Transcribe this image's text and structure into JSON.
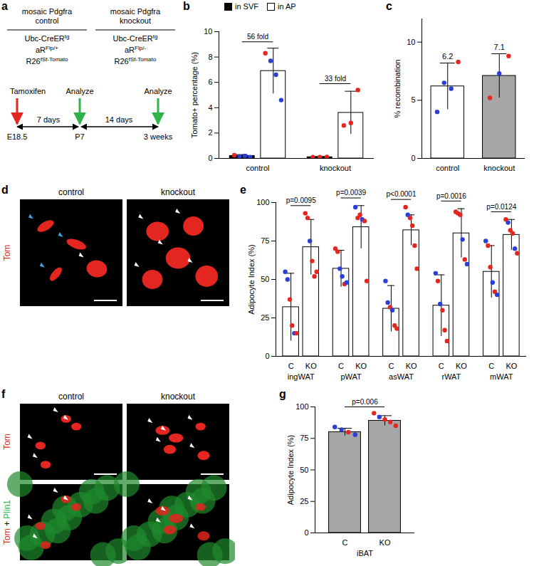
{
  "diagram": {
    "panel": "a",
    "groups": [
      {
        "title": [
          "mosaic Pdgfra",
          "control"
        ],
        "genotype": [
          {
            "base": "Ubc-CreER",
            "sup": "tg"
          },
          {
            "base": "aR",
            "sup": "Flp/+"
          },
          {
            "base": "R26",
            "sup": "fSf-Tomato"
          }
        ]
      },
      {
        "title": [
          "mosaic Pdgfra",
          "knockout"
        ],
        "genotype": [
          {
            "base": "Ubc-CreER",
            "sup": "tg"
          },
          {
            "base": "aR",
            "sup": "Flp/-"
          },
          {
            "base": "R26",
            "sup": "fSf-Tomato"
          }
        ]
      }
    ],
    "timeline": {
      "points": [
        "E18.5",
        "P7",
        "3 weeks"
      ],
      "intervals": [
        "7 days",
        "14 days"
      ],
      "start_label": "Tamoxifen",
      "analyze_label": "Analyze"
    }
  },
  "images": [
    {
      "panel": "d",
      "columns": [
        "control",
        "knockout"
      ],
      "rows": [
        "Tom"
      ]
    },
    {
      "panel": "f",
      "columns": [
        "control",
        "knockout"
      ],
      "rows": [
        "Tom",
        "Tom + Plin1"
      ]
    }
  ],
  "chart_data": [
    {
      "panel": "b",
      "type": "bar",
      "categories": [
        "control",
        "knockout"
      ],
      "y_label": "Tomato+ percentage (%)",
      "ylim": [
        0,
        10
      ],
      "yticks": [
        0,
        2,
        4,
        6,
        8,
        10
      ],
      "legend": "upper left",
      "series": [
        {
          "name": "in SVF",
          "color": "#000000",
          "values": [
            0.2,
            0.1
          ],
          "errors": [
            0.1,
            0.05
          ],
          "points": [
            [
              0.25,
              0.15,
              0.2,
              0.1
            ],
            [
              0.1,
              0.1,
              0.12
            ]
          ],
          "point_colors": [
            [
              "#e3261f",
              "#2b3fd6",
              "#2b3fd6",
              "#2b3fd6"
            ],
            [
              "#e3261f",
              "#e3261f",
              "#e3261f"
            ]
          ]
        },
        {
          "name": "in AP",
          "color": "#ffffff",
          "values": [
            6.9,
            3.6
          ],
          "errors": [
            1.8,
            1.7
          ],
          "points": [
            [
              8.3,
              7.7,
              6.6,
              4.6
            ],
            [
              2.6,
              2.8,
              5.4
            ]
          ],
          "point_colors": [
            [
              "#e3261f",
              "#2b3fd6",
              "#2b3fd6",
              "#2b3fd6"
            ],
            [
              "#e3261f",
              "#e3261f",
              "#e3261f"
            ]
          ]
        }
      ],
      "annotations": [
        {
          "category": "control",
          "text": "56 fold"
        },
        {
          "category": "knockout",
          "text": "33 fold"
        }
      ]
    },
    {
      "panel": "c",
      "type": "bar",
      "categories": [
        "control",
        "knockout"
      ],
      "y_label": "% recombination",
      "ylim": [
        0,
        12
      ],
      "yticks": [
        0,
        5,
        10
      ],
      "data_labels": true,
      "values": [
        6.2,
        7.1
      ],
      "colors": [
        "#ffffff",
        "#a6a6a6"
      ],
      "errors": [
        2.0,
        1.9
      ],
      "points": [
        [
          4.0,
          6.5,
          6.0,
          8.3
        ],
        [
          5.2,
          7.3,
          8.8
        ]
      ],
      "point_colors": [
        [
          "#2b3fd6",
          "#2b3fd6",
          "#2b3fd6",
          "#e3261f"
        ],
        [
          "#e3261f",
          "#2b3fd6",
          "#e3261f"
        ]
      ]
    },
    {
      "panel": "e",
      "type": "bar",
      "categories": [
        "ingWAT",
        "pWAT",
        "asWAT",
        "rWAT",
        "mWAT"
      ],
      "y_label": "Adipocyte Index (%)",
      "ylim": [
        0,
        100
      ],
      "yticks": [
        0,
        25,
        50,
        75,
        100
      ],
      "series": [
        {
          "name": "C",
          "color": "#ffffff",
          "values": [
            32,
            57,
            31,
            33,
            55
          ],
          "errors": [
            22,
            12,
            15,
            20,
            17
          ],
          "points": [
            [
              55,
              50,
              37,
              20,
              15,
              15
            ],
            [
              70,
              68,
              57,
              52,
              47,
              48
            ],
            [
              49,
              35,
              32,
              30,
              20,
              18
            ],
            [
              54,
              49,
              34,
              30,
              17,
              10
            ],
            [
              75,
              72,
              58,
              48,
              42,
              40
            ]
          ],
          "point_colors": [
            [
              "#2b3fd6",
              "#2b3fd6",
              "#e3261f",
              "#e3261f",
              "#2b3fd6",
              "#e3261f"
            ],
            [
              "#e3261f",
              "#e3261f",
              "#2b3fd6",
              "#2b3fd6",
              "#e3261f",
              "#2b3fd6"
            ],
            [
              "#2b3fd6",
              "#2b3fd6",
              "#e3261f",
              "#2b3fd6",
              "#e3261f",
              "#e3261f"
            ],
            [
              "#2b3fd6",
              "#e3261f",
              "#2b3fd6",
              "#e3261f",
              "#e3261f",
              "#e3261f"
            ],
            [
              "#2b3fd6",
              "#e3261f",
              "#e3261f",
              "#2b3fd6",
              "#e3261f",
              "#2b3fd6"
            ]
          ]
        },
        {
          "name": "KO",
          "color": "#ffffff",
          "values": [
            71,
            84,
            82,
            80,
            79
          ],
          "errors": [
            18,
            14,
            10,
            16,
            10
          ],
          "points": [
            [
              93,
              90,
              75,
              62,
              52,
              55
            ],
            [
              97,
              90,
              92,
              89,
              88,
              49
            ],
            [
              97,
              92,
              90,
              85,
              72,
              57
            ],
            [
              94,
              93,
              92,
              76,
              63,
              60
            ],
            [
              89,
              87,
              82,
              80,
              70,
              67
            ]
          ],
          "point_colors": [
            [
              "#e3261f",
              "#e3261f",
              "#2b3fd6",
              "#e3261f",
              "#e3261f",
              "#e3261f"
            ],
            [
              "#2b3fd6",
              "#e3261f",
              "#e3261f",
              "#2b3fd6",
              "#e3261f",
              "#e3261f"
            ],
            [
              "#e3261f",
              "#2b3fd6",
              "#e3261f",
              "#e3261f",
              "#e3261f",
              "#e3261f"
            ],
            [
              "#e3261f",
              "#e3261f",
              "#e3261f",
              "#2b3fd6",
              "#e3261f",
              "#2b3fd6"
            ],
            [
              "#e3261f",
              "#2b3fd6",
              "#e3261f",
              "#e3261f",
              "#2b3fd6",
              "#e3261f"
            ]
          ]
        }
      ],
      "annotations": [
        {
          "category": "ingWAT",
          "text": "p=0.0095"
        },
        {
          "category": "pWAT",
          "text": "p=0.0039"
        },
        {
          "category": "asWAT",
          "text": "p<0.0001"
        },
        {
          "category": "rWAT",
          "text": "p=0.0016"
        },
        {
          "category": "mWAT",
          "text": "p=0.0124"
        }
      ]
    },
    {
      "panel": "g",
      "type": "bar",
      "categories": [
        "iBAT"
      ],
      "y_label": "Adipocyte Index (%)",
      "ylim": [
        0,
        100
      ],
      "yticks": [
        0,
        25,
        50,
        75,
        100
      ],
      "series": [
        {
          "name": "C",
          "color": "#a6a6a6",
          "values": [
            80
          ],
          "errors": [
            3
          ],
          "points": [
            [
              84,
              82,
              80,
              78
            ]
          ],
          "point_colors": [
            [
              "#2b3fd6",
              "#2b3fd6",
              "#e3261f",
              "#2b3fd6"
            ]
          ]
        },
        {
          "name": "KO",
          "color": "#a6a6a6",
          "values": [
            89
          ],
          "errors": [
            4
          ],
          "points": [
            [
              95,
              92,
              90,
              88,
              85
            ]
          ],
          "point_colors": [
            [
              "#e3261f",
              "#2b3fd6",
              "#e3261f",
              "#e3261f",
              "#e3261f"
            ]
          ]
        }
      ],
      "annotations": [
        {
          "category": "iBAT",
          "text": "p=0.006"
        }
      ]
    }
  ]
}
